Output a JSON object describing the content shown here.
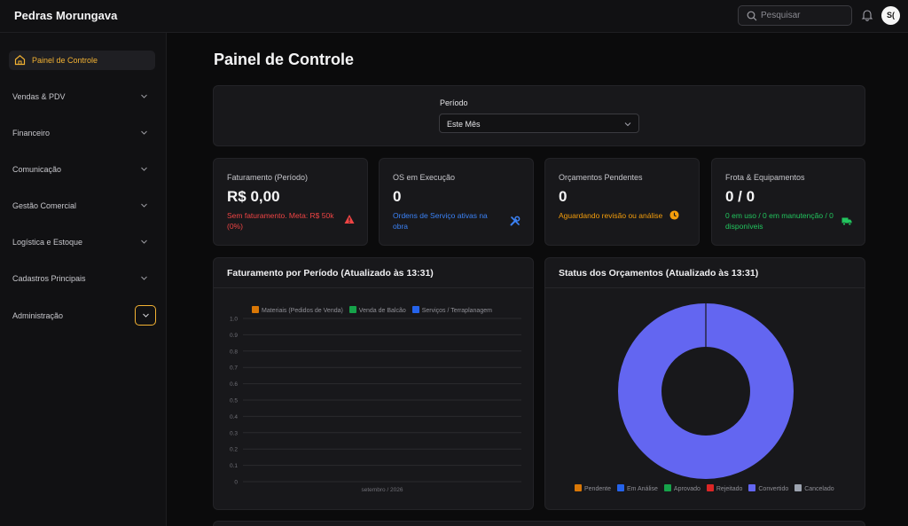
{
  "app": {
    "brand": "Pedras Morungava",
    "search_placeholder": "Pesquisar",
    "avatar_initials": "S("
  },
  "sidebar": {
    "items": [
      {
        "label": "Painel de Controle",
        "icon": "home-icon",
        "active": true
      },
      {
        "label": "Vendas & PDV",
        "icon": "chevron-down-icon"
      },
      {
        "label": "Financeiro",
        "icon": "chevron-down-icon"
      },
      {
        "label": "Comunicação",
        "icon": "chevron-down-icon"
      },
      {
        "label": "Gestão Comercial",
        "icon": "chevron-down-icon"
      },
      {
        "label": "Logística e Estoque",
        "icon": "chevron-down-icon"
      },
      {
        "label": "Cadastros Principais",
        "icon": "chevron-down-icon"
      },
      {
        "label": "Administração",
        "icon": "chevron-down-icon",
        "focused": true
      }
    ]
  },
  "main": {
    "title": "Painel de Controle",
    "period": {
      "label": "Período",
      "value": "Este Mês"
    },
    "kpis": [
      {
        "title": "Faturamento (Período)",
        "value": "R$ 0,00",
        "sub": "Sem faturamento. Meta: R$ 50k (0%)",
        "icon": "warning-triangle-icon",
        "color": "#ef4444"
      },
      {
        "title": "OS em Execução",
        "value": "0",
        "sub": "Ordens de Serviço ativas na obra",
        "icon": "tools-icon",
        "color": "#3b82f6"
      },
      {
        "title": "Orçamentos Pendentes",
        "value": "0",
        "sub": "Aguardando revisão ou análise",
        "icon": "clock-icon",
        "color": "#f59e0b"
      },
      {
        "title": "Frota & Equipamentos",
        "value": "0 / 0",
        "sub": "0 em uso / 0 em manutenção / 0 disponíveis",
        "icon": "truck-icon",
        "color": "#22c55e"
      }
    ],
    "revenue_chart_title": "Faturamento por Período (Atualizado às 13:31)",
    "status_chart_title": "Status dos Orçamentos (Atualizado às 13:31)"
  },
  "chart_data": [
    {
      "type": "bar",
      "title": "Faturamento por Período (Atualizado às 13:31)",
      "categories": [
        "setembro / 2026"
      ],
      "series": [
        {
          "name": "Materiais (Pedidos de Venda)",
          "values": [
            0
          ],
          "color": "#d97706"
        },
        {
          "name": "Venda de Balcão",
          "values": [
            0
          ],
          "color": "#16a34a"
        },
        {
          "name": "Serviços / Terraplanagem",
          "values": [
            0
          ],
          "color": "#2563eb"
        }
      ],
      "yticks": [
        "0",
        "0.1",
        "0.2",
        "0.3",
        "0.4",
        "0.5",
        "0.6",
        "0.7",
        "0.8",
        "0.9",
        "1.0"
      ],
      "ylim": [
        0,
        1
      ],
      "grid": true,
      "legend": "top"
    },
    {
      "type": "pie",
      "title": "Status dos Orçamentos (Atualizado às 13:31)",
      "slices": [
        {
          "name": "Pendente",
          "value": 0,
          "color": "#d97706"
        },
        {
          "name": "Em Análise",
          "value": 0,
          "color": "#2563eb"
        },
        {
          "name": "Aprovado",
          "value": 0,
          "color": "#16a34a"
        },
        {
          "name": "Rejeitado",
          "value": 0,
          "color": "#dc2626"
        },
        {
          "name": "Convertido",
          "value": 1,
          "color": "#6366f1"
        },
        {
          "name": "Cancelado",
          "value": 0,
          "color": "#9ca3af"
        }
      ],
      "donut": true,
      "legend": "bottom"
    }
  ]
}
